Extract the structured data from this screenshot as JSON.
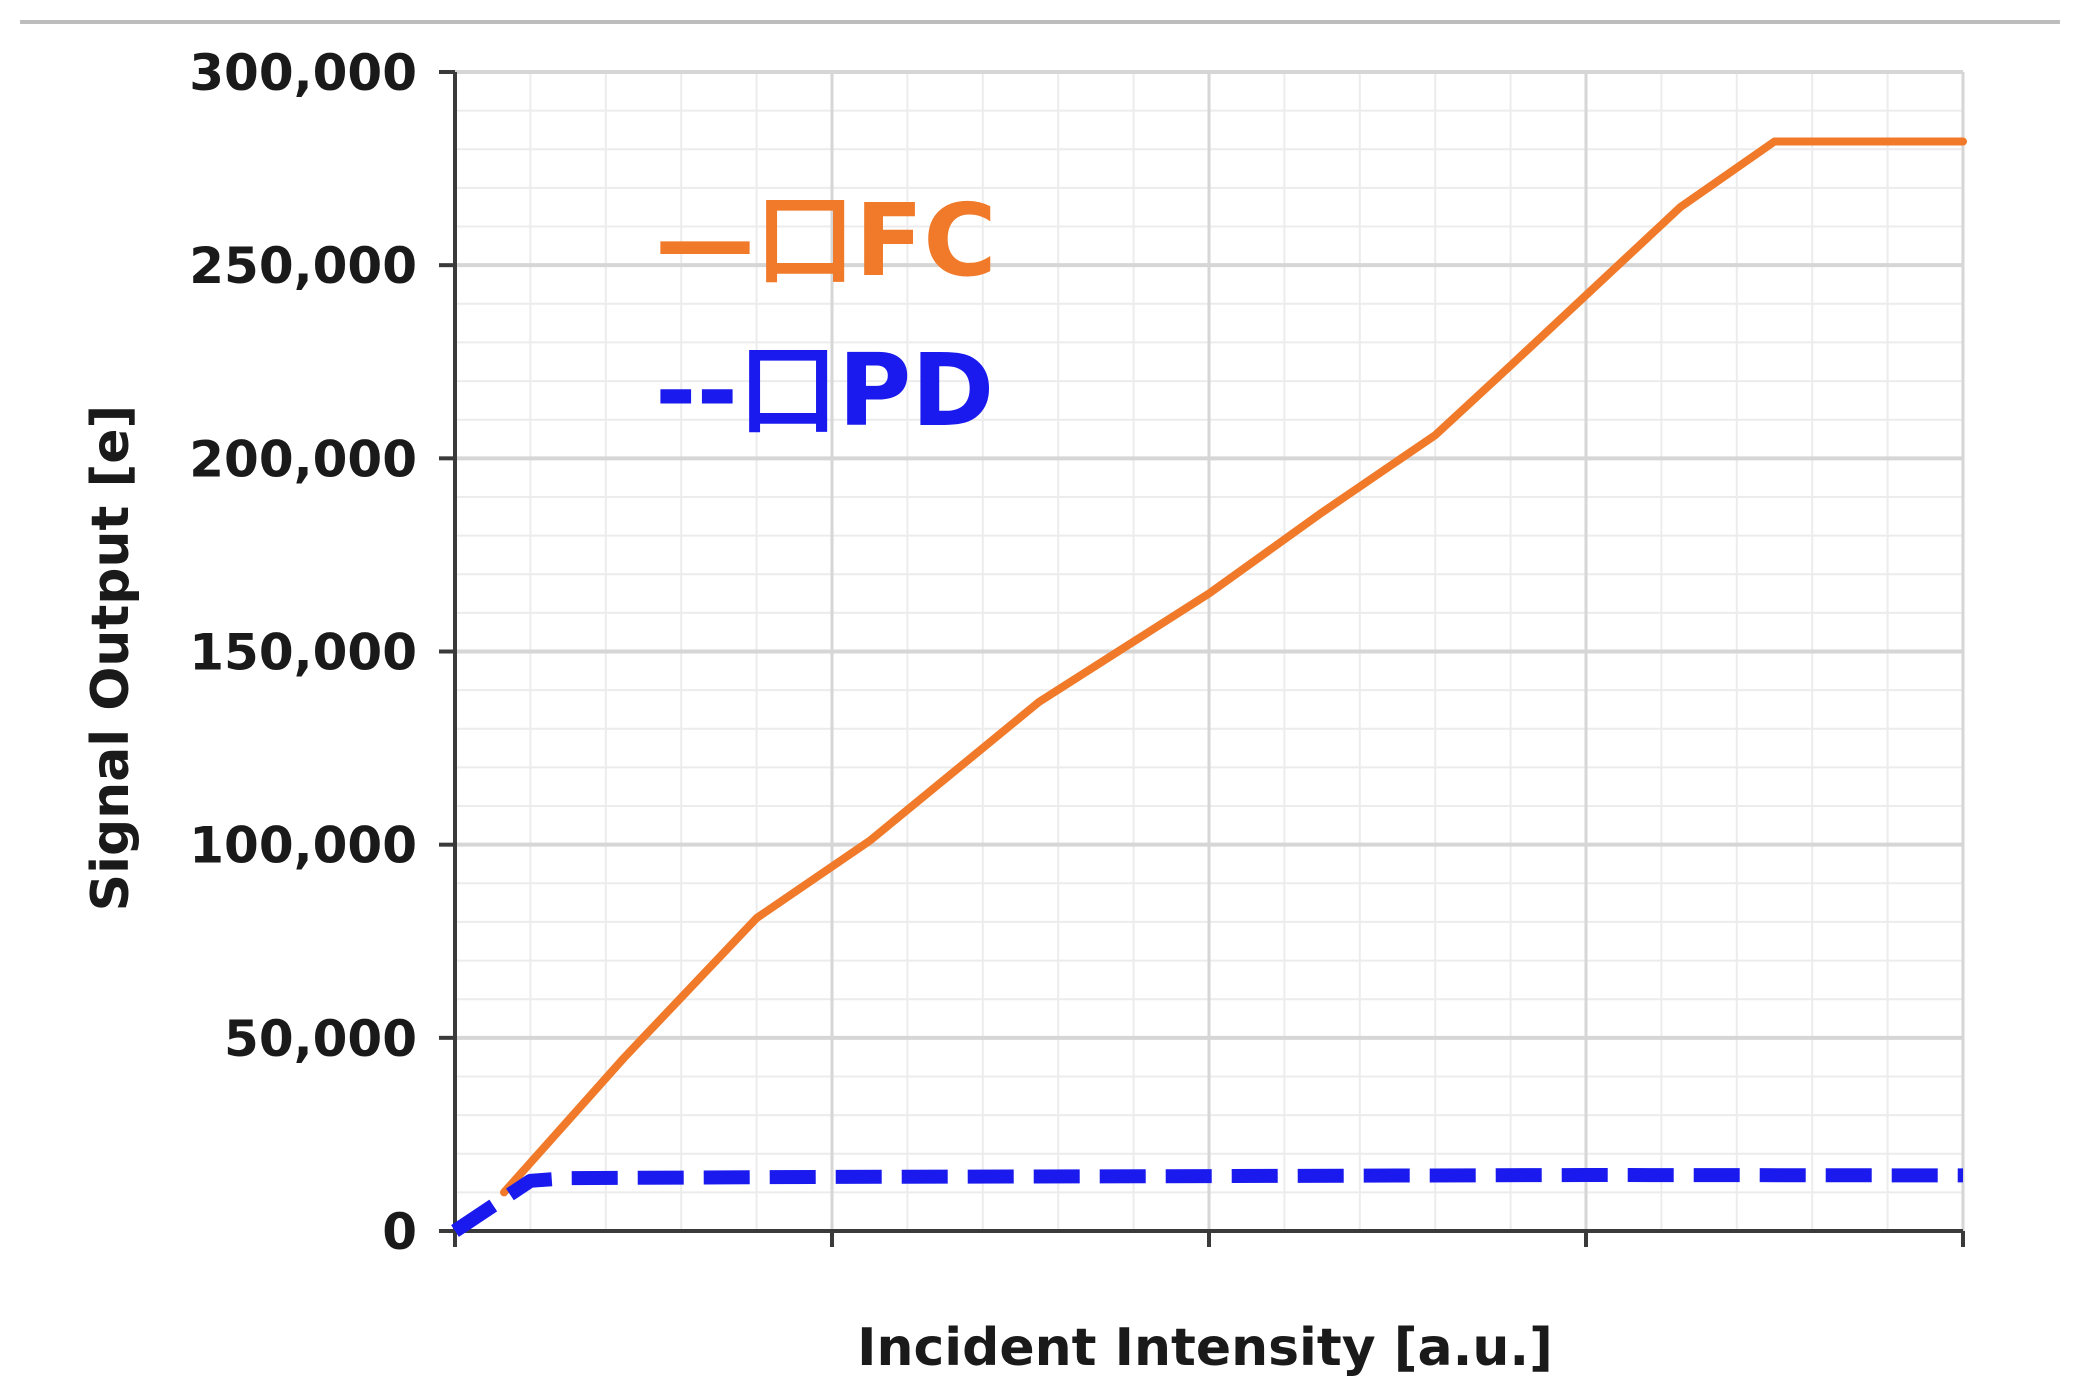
{
  "chart_data": {
    "type": "line",
    "title": "",
    "xlabel": "Incident Intensity [a.u.]",
    "ylabel": "Signal Output [e]",
    "xlim": [
      0,
      4
    ],
    "ylim": [
      0,
      300000
    ],
    "x_ticks": [
      0,
      1,
      2,
      3,
      4
    ],
    "x_tick_labels": [
      "",
      "",
      "",
      "",
      ""
    ],
    "y_ticks": [
      0,
      50000,
      100000,
      150000,
      200000,
      250000,
      300000
    ],
    "y_tick_labels": [
      "0",
      "50,000",
      "100,000",
      "150,000",
      "200,000",
      "250,000",
      "300,000"
    ],
    "grid": true,
    "minor_grid": true,
    "legend_position": "upper-left",
    "series": [
      {
        "name": "FC",
        "legend_label": "—口FC",
        "color": "#f07a2a",
        "line_style": "solid",
        "x": [
          0.13,
          0.45,
          0.8,
          1.1,
          1.55,
          2.0,
          2.3,
          2.6,
          2.8,
          3.25,
          3.5,
          4.0
        ],
        "y": [
          10000,
          45000,
          81000,
          101000,
          137000,
          165000,
          186000,
          206000,
          224000,
          265000,
          282000,
          282000
        ]
      },
      {
        "name": "PD",
        "legend_label": "--口PD",
        "color": "#1a1aee",
        "line_style": "dashed",
        "x": [
          0.0,
          0.2,
          0.3,
          1.0,
          2.0,
          3.0,
          4.0
        ],
        "y": [
          0,
          13000,
          13700,
          14000,
          14200,
          14500,
          14400
        ]
      }
    ]
  }
}
